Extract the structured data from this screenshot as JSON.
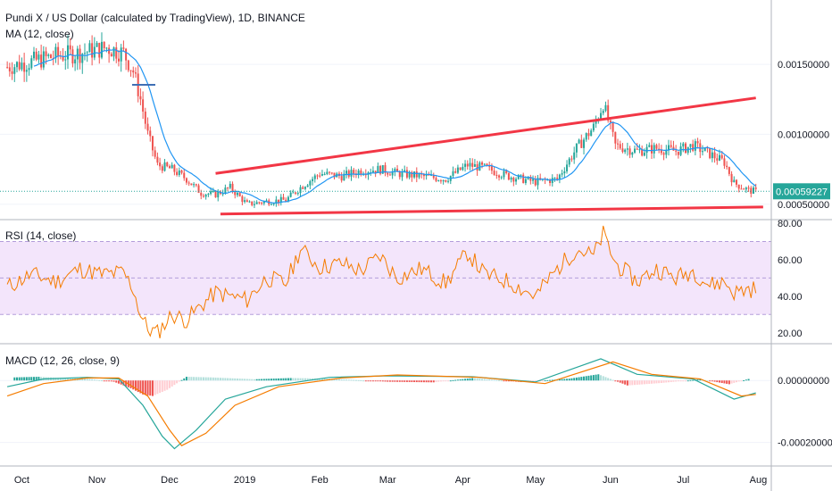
{
  "chart_data": [
    {
      "type": "candlestick",
      "title": "Pundi X / US Dollar (calculated by TradingView), 1D, BINANCE",
      "indicator_label": "MA (12, close)",
      "y_ticks": [
        "0.00150000",
        "0.00100000",
        "0.00050000"
      ],
      "y_tick_values": [
        0.0015,
        0.001,
        0.0005
      ],
      "ylim": [
        0.00039,
        0.00196
      ],
      "last_price": "0.00059227",
      "last_price_value": 0.00059227,
      "x_ticks": [
        "Oct",
        "Nov",
        "Dec",
        "2019",
        "Feb",
        "Mar",
        "Apr",
        "May",
        "Jun",
        "Jul",
        "Aug"
      ],
      "close_points": [
        {
          "date": "2018-09-25",
          "close": 0.00148
        },
        {
          "date": "2018-10-05",
          "close": 0.00152
        },
        {
          "date": "2018-10-15",
          "close": 0.00156
        },
        {
          "date": "2018-10-25",
          "close": 0.00158
        },
        {
          "date": "2018-11-05",
          "close": 0.00162
        },
        {
          "date": "2018-11-12",
          "close": 0.00158
        },
        {
          "date": "2018-11-16",
          "close": 0.00145
        },
        {
          "date": "2018-11-19",
          "close": 0.00125
        },
        {
          "date": "2018-11-22",
          "close": 0.001
        },
        {
          "date": "2018-11-26",
          "close": 0.00078
        },
        {
          "date": "2018-12-02",
          "close": 0.00075
        },
        {
          "date": "2018-12-08",
          "close": 0.00068
        },
        {
          "date": "2018-12-14",
          "close": 0.00058
        },
        {
          "date": "2018-12-20",
          "close": 0.00057
        },
        {
          "date": "2018-12-26",
          "close": 0.00062
        },
        {
          "date": "2019-01-02",
          "close": 0.0005
        },
        {
          "date": "2019-01-10",
          "close": 0.00052
        },
        {
          "date": "2019-01-18",
          "close": 0.00053
        },
        {
          "date": "2019-01-24",
          "close": 0.00062
        },
        {
          "date": "2019-02-01",
          "close": 0.00072
        },
        {
          "date": "2019-02-10",
          "close": 0.0007
        },
        {
          "date": "2019-02-18",
          "close": 0.00074
        },
        {
          "date": "2019-02-26",
          "close": 0.00075
        },
        {
          "date": "2019-03-05",
          "close": 0.00072
        },
        {
          "date": "2019-03-15",
          "close": 0.0007
        },
        {
          "date": "2019-03-25",
          "close": 0.00068
        },
        {
          "date": "2019-04-03",
          "close": 0.00078
        },
        {
          "date": "2019-04-10",
          "close": 0.00076
        },
        {
          "date": "2019-04-20",
          "close": 0.0007
        },
        {
          "date": "2019-05-01",
          "close": 0.00066
        },
        {
          "date": "2019-05-10",
          "close": 0.00068
        },
        {
          "date": "2019-05-18",
          "close": 0.0009
        },
        {
          "date": "2019-05-25",
          "close": 0.00105
        },
        {
          "date": "2019-05-29",
          "close": 0.00122
        },
        {
          "date": "2019-06-03",
          "close": 0.00092
        },
        {
          "date": "2019-06-12",
          "close": 0.00088
        },
        {
          "date": "2019-06-20",
          "close": 0.0009
        },
        {
          "date": "2019-06-28",
          "close": 0.00088
        },
        {
          "date": "2019-07-05",
          "close": 0.00092
        },
        {
          "date": "2019-07-12",
          "close": 0.00086
        },
        {
          "date": "2019-07-18",
          "close": 0.0008
        },
        {
          "date": "2019-07-22",
          "close": 0.00065
        },
        {
          "date": "2019-07-28",
          "close": 0.0006
        },
        {
          "date": "2019-07-31",
          "close": 0.00059
        }
      ],
      "trendlines": [
        {
          "color": "#f23645",
          "from": {
            "date": "2018-12-20",
            "price": 0.00072
          },
          "to": {
            "date": "2019-07-31",
            "price": 0.00126
          }
        },
        {
          "color": "#f23645",
          "from": {
            "date": "2018-12-22",
            "price": 0.00043
          },
          "to": {
            "date": "2019-08-03",
            "price": 0.00048
          }
        }
      ]
    },
    {
      "type": "line",
      "title": "RSI (14, close)",
      "y_ticks": [
        "80.00",
        "60.00",
        "40.00",
        "20.00"
      ],
      "y_tick_values": [
        80,
        60,
        40,
        20
      ],
      "ylim": [
        15,
        80
      ],
      "band": [
        30,
        70
      ],
      "series": [
        {
          "color": "#f57c00",
          "points": [
            {
              "date": "2018-09-25",
              "value": 45
            },
            {
              "date": "2018-10-05",
              "value": 52
            },
            {
              "date": "2018-10-15",
              "value": 48
            },
            {
              "date": "2018-10-25",
              "value": 55
            },
            {
              "date": "2018-11-03",
              "value": 52
            },
            {
              "date": "2018-11-12",
              "value": 53
            },
            {
              "date": "2018-11-16",
              "value": 44
            },
            {
              "date": "2018-11-19",
              "value": 30
            },
            {
              "date": "2018-11-22",
              "value": 22
            },
            {
              "date": "2018-11-26",
              "value": 20
            },
            {
              "date": "2018-12-02",
              "value": 30
            },
            {
              "date": "2018-12-08",
              "value": 27
            },
            {
              "date": "2018-12-14",
              "value": 35
            },
            {
              "date": "2018-12-20",
              "value": 42
            },
            {
              "date": "2018-12-26",
              "value": 40
            },
            {
              "date": "2019-01-02",
              "value": 38
            },
            {
              "date": "2019-01-10",
              "value": 50
            },
            {
              "date": "2019-01-18",
              "value": 47
            },
            {
              "date": "2019-01-24",
              "value": 66
            },
            {
              "date": "2019-02-01",
              "value": 56
            },
            {
              "date": "2019-02-10",
              "value": 58
            },
            {
              "date": "2019-02-18",
              "value": 54
            },
            {
              "date": "2019-02-26",
              "value": 62
            },
            {
              "date": "2019-03-05",
              "value": 50
            },
            {
              "date": "2019-03-15",
              "value": 55
            },
            {
              "date": "2019-03-25",
              "value": 47
            },
            {
              "date": "2019-04-03",
              "value": 64
            },
            {
              "date": "2019-04-10",
              "value": 52
            },
            {
              "date": "2019-04-20",
              "value": 48
            },
            {
              "date": "2019-05-01",
              "value": 40
            },
            {
              "date": "2019-05-10",
              "value": 55
            },
            {
              "date": "2019-05-18",
              "value": 66
            },
            {
              "date": "2019-05-25",
              "value": 62
            },
            {
              "date": "2019-05-29",
              "value": 74
            },
            {
              "date": "2019-06-03",
              "value": 58
            },
            {
              "date": "2019-06-12",
              "value": 48
            },
            {
              "date": "2019-06-20",
              "value": 55
            },
            {
              "date": "2019-06-28",
              "value": 50
            },
            {
              "date": "2019-07-05",
              "value": 54
            },
            {
              "date": "2019-07-12",
              "value": 46
            },
            {
              "date": "2019-07-18",
              "value": 48
            },
            {
              "date": "2019-07-22",
              "value": 42
            },
            {
              "date": "2019-07-28",
              "value": 44
            },
            {
              "date": "2019-07-31",
              "value": 44
            }
          ]
        }
      ]
    },
    {
      "type": "bar+line",
      "title": "MACD (12, 26, close, 9)",
      "y_ticks": [
        "0.00000000",
        "-0.00020000"
      ],
      "y_tick_values": [
        0,
        -0.0002
      ],
      "ylim": [
        -0.00027,
        0.00011
      ],
      "histogram": [
        {
          "date": "2018-09-28",
          "value": 1e-05
        },
        {
          "date": "2018-10-08",
          "value": 1.2e-05
        },
        {
          "date": "2018-10-18",
          "value": 8e-06
        },
        {
          "date": "2018-10-28",
          "value": 6e-06
        },
        {
          "date": "2018-11-08",
          "value": -4e-06
        },
        {
          "date": "2018-11-15",
          "value": -2.5e-05
        },
        {
          "date": "2018-11-20",
          "value": -4.5e-05
        },
        {
          "date": "2018-11-24",
          "value": -5e-05
        },
        {
          "date": "2018-11-30",
          "value": -3e-05
        },
        {
          "date": "2018-12-08",
          "value": 1.2e-05
        },
        {
          "date": "2018-12-18",
          "value": 1e-05
        },
        {
          "date": "2019-01-05",
          "value": 4e-06
        },
        {
          "date": "2019-01-20",
          "value": 8e-06
        },
        {
          "date": "2019-02-05",
          "value": 6e-06
        },
        {
          "date": "2019-03-01",
          "value": -4e-06
        },
        {
          "date": "2019-03-20",
          "value": -6e-06
        },
        {
          "date": "2019-04-05",
          "value": 8e-06
        },
        {
          "date": "2019-04-25",
          "value": -5e-06
        },
        {
          "date": "2019-05-15",
          "value": 6e-06
        },
        {
          "date": "2019-05-27",
          "value": 2e-05
        },
        {
          "date": "2019-06-08",
          "value": -1.6e-05
        },
        {
          "date": "2019-06-22",
          "value": -8e-06
        },
        {
          "date": "2019-07-08",
          "value": 4e-06
        },
        {
          "date": "2019-07-20",
          "value": -1.2e-05
        },
        {
          "date": "2019-07-28",
          "value": 5e-06
        }
      ],
      "series": [
        {
          "color": "#26a69a",
          "points": [
            {
              "date": "2018-09-25",
              "value": -2e-05
            },
            {
              "date": "2018-10-10",
              "value": 5e-06
            },
            {
              "date": "2018-10-28",
              "value": 1e-05
            },
            {
              "date": "2018-11-10",
              "value": 5e-06
            },
            {
              "date": "2018-11-20",
              "value": -8e-05
            },
            {
              "date": "2018-11-28",
              "value": -0.00018
            },
            {
              "date": "2018-12-03",
              "value": -0.00022
            },
            {
              "date": "2018-12-12",
              "value": -0.00016
            },
            {
              "date": "2018-12-24",
              "value": -6e-05
            },
            {
              "date": "2019-01-10",
              "value": -2e-05
            },
            {
              "date": "2019-02-05",
              "value": 1e-05
            },
            {
              "date": "2019-03-01",
              "value": 1.5e-05
            },
            {
              "date": "2019-04-05",
              "value": 1.2e-05
            },
            {
              "date": "2019-05-01",
              "value": -5e-06
            },
            {
              "date": "2019-05-28",
              "value": 7e-05
            },
            {
              "date": "2019-06-12",
              "value": 2e-05
            },
            {
              "date": "2019-07-05",
              "value": 5e-06
            },
            {
              "date": "2019-07-22",
              "value": -6e-05
            },
            {
              "date": "2019-07-31",
              "value": -4e-05
            }
          ]
        },
        {
          "color": "#f57c00",
          "points": [
            {
              "date": "2018-09-25",
              "value": -5e-05
            },
            {
              "date": "2018-10-10",
              "value": -1e-05
            },
            {
              "date": "2018-10-28",
              "value": 8e-06
            },
            {
              "date": "2018-11-10",
              "value": 8e-06
            },
            {
              "date": "2018-11-22",
              "value": -5e-05
            },
            {
              "date": "2018-12-01",
              "value": -0.00016
            },
            {
              "date": "2018-12-06",
              "value": -0.00021
            },
            {
              "date": "2018-12-16",
              "value": -0.00017
            },
            {
              "date": "2018-12-28",
              "value": -8e-05
            },
            {
              "date": "2019-01-15",
              "value": -2e-05
            },
            {
              "date": "2019-02-10",
              "value": 8e-06
            },
            {
              "date": "2019-03-05",
              "value": 1.8e-05
            },
            {
              "date": "2019-04-08",
              "value": 1e-05
            },
            {
              "date": "2019-05-05",
              "value": -1e-05
            },
            {
              "date": "2019-06-02",
              "value": 6e-05
            },
            {
              "date": "2019-06-18",
              "value": 2e-05
            },
            {
              "date": "2019-07-08",
              "value": 5e-06
            },
            {
              "date": "2019-07-25",
              "value": -5e-05
            },
            {
              "date": "2019-07-31",
              "value": -4.5e-05
            }
          ]
        }
      ]
    }
  ]
}
